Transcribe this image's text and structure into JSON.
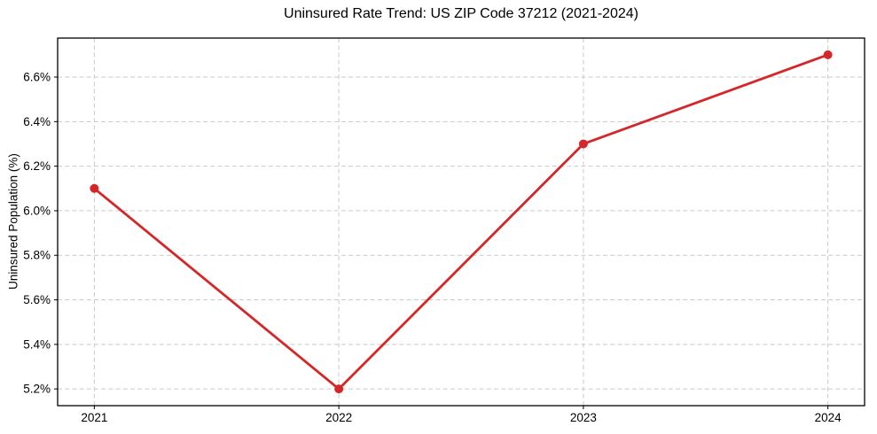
{
  "chart_data": {
    "type": "line",
    "title": "Uninsured Rate Trend: US ZIP Code 37212 (2021-2024)",
    "xlabel": "",
    "ylabel": "Uninsured Population (%)",
    "x": [
      2021,
      2022,
      2023,
      2024
    ],
    "values": [
      6.1,
      5.2,
      6.3,
      6.7
    ],
    "xticks": [
      "2021",
      "2022",
      "2023",
      "2024"
    ],
    "yticks": [
      "5.2%",
      "5.4%",
      "5.6%",
      "5.8%",
      "6.0%",
      "6.2%",
      "6.4%",
      "6.6%"
    ],
    "ytick_values": [
      5.2,
      5.4,
      5.6,
      5.8,
      6.0,
      6.2,
      6.4,
      6.6
    ],
    "xlim": [
      2020.85,
      2024.15
    ],
    "ylim": [
      5.125,
      6.775
    ],
    "grid": true,
    "legend": "none",
    "marker": "circle",
    "line_color": "#d62728",
    "grid_color": "#c9c9c9",
    "spine_color": "#000000",
    "text_color": "#000000",
    "background": "#ffffff"
  }
}
